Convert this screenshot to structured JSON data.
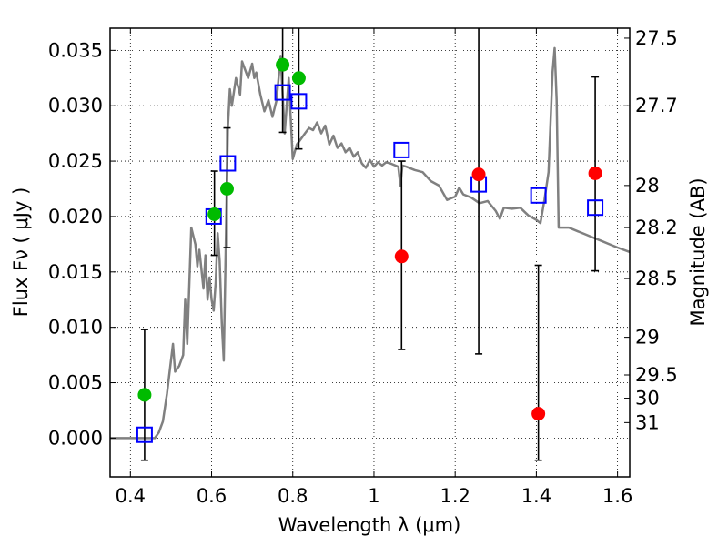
{
  "chart_data": {
    "type": "scatter",
    "xlabel": "Wavelength  λ (μm)",
    "ylabel": "Flux  Fν ( μJy )",
    "ylabel_right": "Magnitude (AB)",
    "xlim": [
      0.35,
      1.63
    ],
    "ylim": [
      -0.0035,
      0.037
    ],
    "grid": true,
    "x_ticks": [
      0.4,
      0.6,
      0.8,
      1.0,
      1.2,
      1.4,
      1.6
    ],
    "x_tick_labels": [
      "0.4",
      "0.6",
      "0.8",
      "1",
      "1.2",
      "1.4",
      "1.6"
    ],
    "y_ticks": [
      0.0,
      0.005,
      0.01,
      0.015,
      0.02,
      0.025,
      0.03,
      0.035
    ],
    "y_tick_labels": [
      "0.000",
      "0.005",
      "0.010",
      "0.015",
      "0.020",
      "0.025",
      "0.030",
      "0.035"
    ],
    "right_ticks": [
      {
        "label": "27.5",
        "flux": 0.0361
      },
      {
        "label": "27.7",
        "flux": 0.03
      },
      {
        "label": "28",
        "flux": 0.0228
      },
      {
        "label": "28.2",
        "flux": 0.019
      },
      {
        "label": "28.5",
        "flux": 0.0144
      },
      {
        "label": "29",
        "flux": 0.0091
      },
      {
        "label": "29.5",
        "flux": 0.0057
      },
      {
        "label": "30",
        "flux": 0.0036
      },
      {
        "label": "31",
        "flux": 0.0014
      }
    ],
    "series": [
      {
        "kind": "line",
        "color": "#808080",
        "x": [
          0.35,
          0.45,
          0.46,
          0.47,
          0.48,
          0.49,
          0.5,
          0.505,
          0.51,
          0.52,
          0.53,
          0.535,
          0.54,
          0.55,
          0.56,
          0.565,
          0.57,
          0.58,
          0.585,
          0.59,
          0.595,
          0.6,
          0.605,
          0.61,
          0.615,
          0.62,
          0.625,
          0.63,
          0.64,
          0.645,
          0.65,
          0.66,
          0.67,
          0.675,
          0.68,
          0.69,
          0.7,
          0.705,
          0.71,
          0.72,
          0.73,
          0.74,
          0.75,
          0.76,
          0.77,
          0.78,
          0.79,
          0.8,
          0.81,
          0.82,
          0.83,
          0.84,
          0.85,
          0.86,
          0.87,
          0.88,
          0.89,
          0.9,
          0.91,
          0.92,
          0.93,
          0.94,
          0.95,
          0.96,
          0.97,
          0.98,
          0.99,
          1.0,
          1.01,
          1.02,
          1.03,
          1.04,
          1.06,
          1.065,
          1.07,
          1.08,
          1.1,
          1.12,
          1.14,
          1.16,
          1.18,
          1.2,
          1.21,
          1.22,
          1.24,
          1.26,
          1.28,
          1.3,
          1.31,
          1.32,
          1.34,
          1.36,
          1.38,
          1.4,
          1.41,
          1.42,
          1.43,
          1.44,
          1.445,
          1.45,
          1.455,
          1.46,
          1.48,
          1.5,
          1.52,
          1.54,
          1.56,
          1.58,
          1.6,
          1.63
        ],
        "y": [
          0.0,
          0.0,
          0.0,
          0.0005,
          0.0015,
          0.004,
          0.007,
          0.0085,
          0.006,
          0.0065,
          0.0075,
          0.0125,
          0.0085,
          0.019,
          0.0175,
          0.0155,
          0.017,
          0.0135,
          0.0165,
          0.0125,
          0.0145,
          0.0125,
          0.0115,
          0.014,
          0.0185,
          0.016,
          0.0105,
          0.007,
          0.028,
          0.0315,
          0.03,
          0.0325,
          0.031,
          0.034,
          0.0335,
          0.0325,
          0.0338,
          0.0325,
          0.033,
          0.031,
          0.0295,
          0.0305,
          0.029,
          0.0305,
          0.0345,
          0.0275,
          0.0325,
          0.0252,
          0.0265,
          0.027,
          0.0275,
          0.028,
          0.0278,
          0.0285,
          0.0275,
          0.0282,
          0.0265,
          0.0273,
          0.0262,
          0.0266,
          0.0258,
          0.0262,
          0.0254,
          0.0258,
          0.0248,
          0.0244,
          0.0251,
          0.0245,
          0.0249,
          0.0246,
          0.0249,
          0.0248,
          0.0245,
          0.0228,
          0.0246,
          0.0245,
          0.0242,
          0.024,
          0.0232,
          0.0228,
          0.0215,
          0.0218,
          0.0226,
          0.022,
          0.0217,
          0.0212,
          0.0214,
          0.0205,
          0.0198,
          0.0208,
          0.0207,
          0.0208,
          0.0201,
          0.0197,
          0.0194,
          0.0215,
          0.024,
          0.033,
          0.0352,
          0.0305,
          0.019,
          0.019,
          0.019,
          0.0187,
          0.0184,
          0.0181,
          0.0178,
          0.0175,
          0.0172,
          0.0168
        ]
      },
      {
        "kind": "open-square",
        "color": "#0000ff",
        "x": [
          0.435,
          0.605,
          0.64,
          0.775,
          0.815,
          1.068,
          1.258,
          1.405,
          1.545
        ],
        "y": [
          0.0003,
          0.02,
          0.0248,
          0.0312,
          0.0304,
          0.026,
          0.0229,
          0.0219,
          0.0208
        ]
      },
      {
        "kind": "dot",
        "color": "#00bb00",
        "x": [
          0.435,
          0.607,
          0.638,
          0.775,
          0.815
        ],
        "y": [
          0.0039,
          0.0202,
          0.0225,
          0.0337,
          0.0325
        ],
        "err_low": [
          0.0059,
          0.0037,
          0.0053,
          0.0061,
          0.0064
        ],
        "err_high": [
          0.0059,
          0.0039,
          0.0055,
          0.006,
          0.006
        ]
      },
      {
        "kind": "dot",
        "color": "#ff0000",
        "x": [
          1.068,
          1.258,
          1.405,
          1.545
        ],
        "y": [
          0.0164,
          0.0238,
          0.0022,
          0.0239
        ],
        "err_low": [
          0.0084,
          0.0162,
          0.0042,
          0.0088
        ],
        "err_high": [
          0.0086,
          0.014,
          0.0134,
          0.0087
        ]
      }
    ]
  }
}
